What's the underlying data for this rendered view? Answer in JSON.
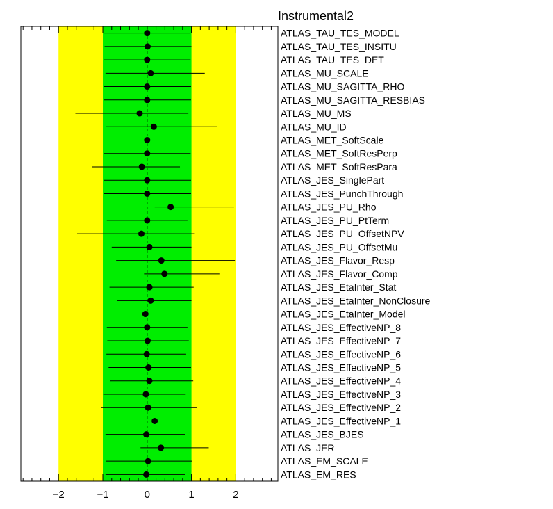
{
  "chart_data": {
    "type": "scatter",
    "title": "Instrumental2",
    "xlabel": "",
    "ylabel": "",
    "xlim": [
      -2.85,
      2.95
    ],
    "xticks": [
      -2,
      -1,
      0,
      1,
      2
    ],
    "xtick_labels": [
      "−2",
      "−1",
      "0",
      "1",
      "2"
    ],
    "bands": [
      {
        "name": "2 sigma",
        "range": [
          -2,
          2
        ],
        "color": "#ffff00"
      },
      {
        "name": "1 sigma",
        "range": [
          -1,
          1
        ],
        "color": "#00ee00"
      }
    ],
    "reference_line": 0,
    "grid": false,
    "legend": "none",
    "points": [
      {
        "label": "ATLAS_TAU_TES_MODEL",
        "value": 0.0,
        "err_low": -0.98,
        "err_high": 0.98
      },
      {
        "label": "ATLAS_TAU_TES_INSITU",
        "value": 0.01,
        "err_low": -0.97,
        "err_high": 0.99
      },
      {
        "label": "ATLAS_TAU_TES_DET",
        "value": 0.0,
        "err_low": -0.98,
        "err_high": 0.98
      },
      {
        "label": "ATLAS_MU_SCALE",
        "value": 0.08,
        "err_low": -1.02,
        "err_high": 1.22
      },
      {
        "label": "ATLAS_MU_SAGITTA_RHO",
        "value": 0.0,
        "err_low": -0.97,
        "err_high": 0.99
      },
      {
        "label": "ATLAS_MU_SAGITTA_RESBIAS",
        "value": 0.0,
        "err_low": -0.97,
        "err_high": 0.99
      },
      {
        "label": "ATLAS_MU_MS",
        "value": -0.17,
        "err_low": -1.45,
        "err_high": 1.1
      },
      {
        "label": "ATLAS_MU_ID",
        "value": 0.15,
        "err_low": -1.08,
        "err_high": 1.43
      },
      {
        "label": "ATLAS_MET_SoftScale",
        "value": 0.0,
        "err_low": -0.97,
        "err_high": 0.99
      },
      {
        "label": "ATLAS_MET_SoftResPerp",
        "value": 0.0,
        "err_low": -0.98,
        "err_high": 0.98
      },
      {
        "label": "ATLAS_MET_SoftResPara",
        "value": -0.12,
        "err_low": -1.12,
        "err_high": 0.86
      },
      {
        "label": "ATLAS_JES_SinglePart",
        "value": 0.0,
        "err_low": -0.97,
        "err_high": 0.99
      },
      {
        "label": "ATLAS_JES_PunchThrough",
        "value": 0.0,
        "err_low": -0.97,
        "err_high": 0.99
      },
      {
        "label": "ATLAS_JES_PU_Rho",
        "value": 0.53,
        "err_low": -0.36,
        "err_high": 1.43
      },
      {
        "label": "ATLAS_JES_PU_PtTerm",
        "value": 0.0,
        "err_low": -0.91,
        "err_high": 0.91
      },
      {
        "label": "ATLAS_JES_PU_OffsetNPV",
        "value": -0.13,
        "err_low": -1.45,
        "err_high": 1.19
      },
      {
        "label": "ATLAS_JES_PU_OffsetMu",
        "value": 0.05,
        "err_low": -0.85,
        "err_high": 0.95
      },
      {
        "label": "ATLAS_JES_Flavor_Resp",
        "value": 0.32,
        "err_low": -1.02,
        "err_high": 1.66
      },
      {
        "label": "ATLAS_JES_Flavor_Comp",
        "value": 0.39,
        "err_low": -0.46,
        "err_high": 1.24
      },
      {
        "label": "ATLAS_JES_EtaInter_Stat",
        "value": 0.05,
        "err_low": -0.9,
        "err_high": 1.0
      },
      {
        "label": "ATLAS_JES_EtaInter_NonClosure",
        "value": 0.08,
        "err_low": -0.76,
        "err_high": 0.92
      },
      {
        "label": "ATLAS_JES_EtaInter_Model",
        "value": -0.04,
        "err_low": -1.21,
        "err_high": 1.13
      },
      {
        "label": "ATLAS_JES_EffectiveNP_8",
        "value": 0.0,
        "err_low": -0.91,
        "err_high": 0.91
      },
      {
        "label": "ATLAS_JES_EffectiveNP_7",
        "value": 0.01,
        "err_low": -0.91,
        "err_high": 0.93
      },
      {
        "label": "ATLAS_JES_EffectiveNP_6",
        "value": -0.01,
        "err_low": -0.91,
        "err_high": 0.89
      },
      {
        "label": "ATLAS_JES_EffectiveNP_5",
        "value": 0.03,
        "err_low": -0.9,
        "err_high": 0.96
      },
      {
        "label": "ATLAS_JES_EffectiveNP_4",
        "value": 0.05,
        "err_low": -0.89,
        "err_high": 0.99
      },
      {
        "label": "ATLAS_JES_EffectiveNP_3",
        "value": -0.03,
        "err_low": -0.96,
        "err_high": 0.9
      },
      {
        "label": "ATLAS_JES_EffectiveNP_2",
        "value": 0.02,
        "err_low": -1.06,
        "err_high": 1.1
      },
      {
        "label": "ATLAS_JES_EffectiveNP_1",
        "value": 0.17,
        "err_low": -0.86,
        "err_high": 1.2
      },
      {
        "label": "ATLAS_JES_BJES",
        "value": -0.02,
        "err_low": -0.92,
        "err_high": 0.88
      },
      {
        "label": "ATLAS_JER",
        "value": 0.31,
        "err_low": -0.46,
        "err_high": 1.08
      },
      {
        "label": "ATLAS_EM_SCALE",
        "value": 0.02,
        "err_low": -0.95,
        "err_high": 0.99
      },
      {
        "label": "ATLAS_EM_RES",
        "value": -0.02,
        "err_low": -0.92,
        "err_high": 0.88
      }
    ]
  }
}
